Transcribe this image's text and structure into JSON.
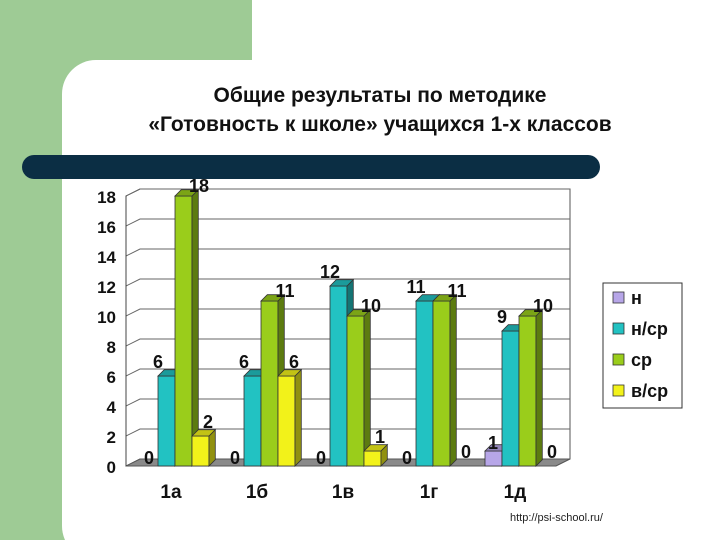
{
  "slide": {
    "title_line1": "Общие результаты по методике",
    "title_line2": "«Готовность к школе» учащихся 1-х классов",
    "source": "http://psi-school.ru/",
    "colors": {
      "side_panel": "#9ecb95",
      "bar_band": "#0b2e44",
      "background": "#ffffff"
    }
  },
  "chart_data": {
    "type": "bar",
    "title": "",
    "xlabel": "",
    "ylabel": "",
    "ylim": [
      0,
      18
    ],
    "yticks": [
      "0",
      "2",
      "4",
      "6",
      "8",
      "10",
      "12",
      "14",
      "16",
      "18"
    ],
    "grid": true,
    "legend_position": "right",
    "categories": [
      "1а",
      "1б",
      "1в",
      "1г",
      "1д"
    ],
    "series": [
      {
        "name": "н",
        "color": "#b7a6e8",
        "values": [
          0,
          0,
          0,
          0,
          1
        ],
        "labels": [
          "0",
          "0",
          "0",
          "0",
          "1"
        ]
      },
      {
        "name": "н/ср",
        "color": "#22c2c2",
        "values": [
          6,
          6,
          12,
          11,
          9
        ],
        "labels": [
          "6",
          "6",
          "12",
          "11",
          "9"
        ]
      },
      {
        "name": "ср",
        "color": "#9acd1b",
        "values": [
          18,
          11,
          10,
          11,
          10
        ],
        "labels": [
          "18",
          "11",
          "10",
          "11",
          "10"
        ]
      },
      {
        "name": "в/ср",
        "color": "#f2f21a",
        "values": [
          2,
          6,
          1,
          0,
          0
        ],
        "labels": [
          "2",
          "6",
          "1",
          "0",
          "0"
        ]
      }
    ]
  }
}
